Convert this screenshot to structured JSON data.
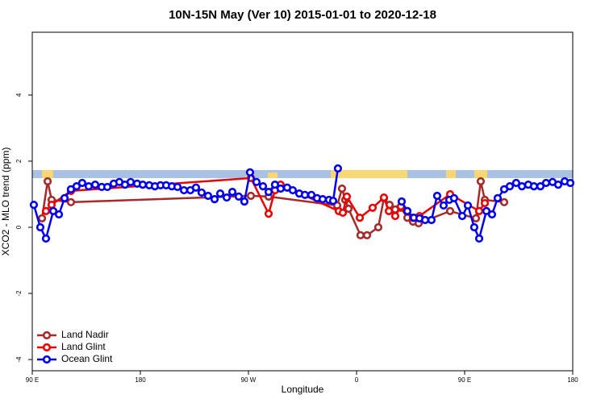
{
  "chart_data": {
    "type": "line",
    "title": "10N-15N May (Ver 10)   2015-01-01 to 2020-12-18",
    "x_label": "Longitude",
    "y_label": "XCO2 - MLO trend (ppm)",
    "xlim": [
      90,
      540
    ],
    "ylim": [
      -4.34,
      5.9
    ],
    "xticks": [
      {
        "value": 90,
        "label": "90 E"
      },
      180,
      {
        "value": 270,
        "label": "90 W"
      },
      {
        "value": 360,
        "label": "0"
      },
      {
        "value": 450,
        "label": "90 E"
      },
      180
    ],
    "yticks": [
      -4,
      -2,
      0,
      2,
      4
    ],
    "legend": "bottom-left",
    "series": [
      {
        "name": "Land Nadir",
        "color": "#a52a2a",
        "x": [
          98.1,
          102.8,
          106.1,
          122.2,
          272.0,
          286.8,
          343.9,
          347.9,
          350.6,
          353.3,
          363.3,
          368.7,
          378.1,
          382.8,
          387.5,
          392.2,
          396.9,
          402.3,
          407.0,
          411.7,
          437.9,
          459.4,
          463.4,
          466.8,
          482.9
        ],
        "values": [
          0.27,
          1.39,
          0.83,
          0.76,
          0.95,
          0.93,
          0.66,
          1.17,
          0.83,
          0.56,
          -0.24,
          -0.24,
          0,
          0.88,
          0.68,
          0.54,
          0.59,
          0.29,
          0.17,
          0.12,
          0.49,
          0.27,
          1.39,
          0.83,
          0.76
        ]
      },
      {
        "name": "Land Glint",
        "color": "#ee0000",
        "x": [
          101.4,
          106.1,
          122.2,
          272.0,
          286.8,
          292.1,
          296.8,
          345.2,
          348.6,
          351.9,
          362.7,
          373.4,
          382.8,
          386.9,
          392.2,
          396.9,
          402.3,
          407.0,
          412.4,
          437.9,
          462.1,
          466.8
        ],
        "values": [
          0.49,
          0.68,
          1.1,
          1.49,
          0.41,
          1.12,
          1.29,
          0.49,
          0.44,
          0.93,
          0.29,
          0.59,
          0.9,
          0.49,
          0.34,
          0.63,
          0.49,
          0.29,
          0.34,
          1.0,
          0.49,
          0.73
        ]
      },
      {
        "name": "Ocean Glint",
        "color": "#0000ee",
        "x": [
          91.3,
          96.7,
          101.4,
          107.5,
          112.2,
          116.9,
          122.2,
          126.9,
          131.6,
          137.0,
          142.4,
          147.8,
          152.5,
          157.8,
          162.5,
          167.2,
          171.9,
          177.3,
          182.0,
          187.4,
          192.1,
          196.8,
          201.5,
          206.2,
          210.9,
          216.3,
          221.6,
          226.3,
          231.0,
          236.4,
          241.8,
          246.5,
          251.9,
          256.6,
          261.9,
          266.6,
          271.3,
          276.7,
          282.1,
          286.8,
          292.1,
          296.8,
          302.2,
          306.9,
          312.3,
          317.0,
          322.4,
          327.1,
          331.8,
          337.1,
          340.5,
          344.5,
          370.0,
          397.6,
          402.3,
          407.7,
          412.4,
          417.1,
          422.4,
          427.1,
          432.5,
          437.2,
          441.2,
          448.0,
          452.7,
          458.0,
          462.1,
          468.1,
          472.8,
          477.5,
          482.9,
          487.6,
          492.9,
          497.7,
          503.0,
          507.7,
          513.1,
          517.8,
          523.2,
          527.9,
          533.3,
          538.0
        ],
        "values": [
          0.68,
          0,
          -0.34,
          0.49,
          0.39,
          0.88,
          1.15,
          1.24,
          1.34,
          1.24,
          1.29,
          1.22,
          1.22,
          1.32,
          1.37,
          1.29,
          1.37,
          1.32,
          1.29,
          1.27,
          1.24,
          1.27,
          1.27,
          1.24,
          1.22,
          1.12,
          1.12,
          1.2,
          1.05,
          0.95,
          0.85,
          1.02,
          0.9,
          1.07,
          0.93,
          0.78,
          1.66,
          1.37,
          1.24,
          1.07,
          1.29,
          1.17,
          1.2,
          1.12,
          1.02,
          0.98,
          0.98,
          0.88,
          0.85,
          0.83,
          0.8,
          1.78,
          null,
          0.78,
          0.49,
          0.29,
          0.27,
          0.22,
          0.22,
          0.95,
          0.66,
          0.83,
          0.88,
          0.34,
          0.66,
          0,
          -0.34,
          0.49,
          0.39,
          0.88,
          1.15,
          1.24,
          1.34,
          1.24,
          1.29,
          1.24,
          1.24,
          1.34,
          1.37,
          1.29,
          1.39,
          1.34
        ]
      }
    ]
  }
}
